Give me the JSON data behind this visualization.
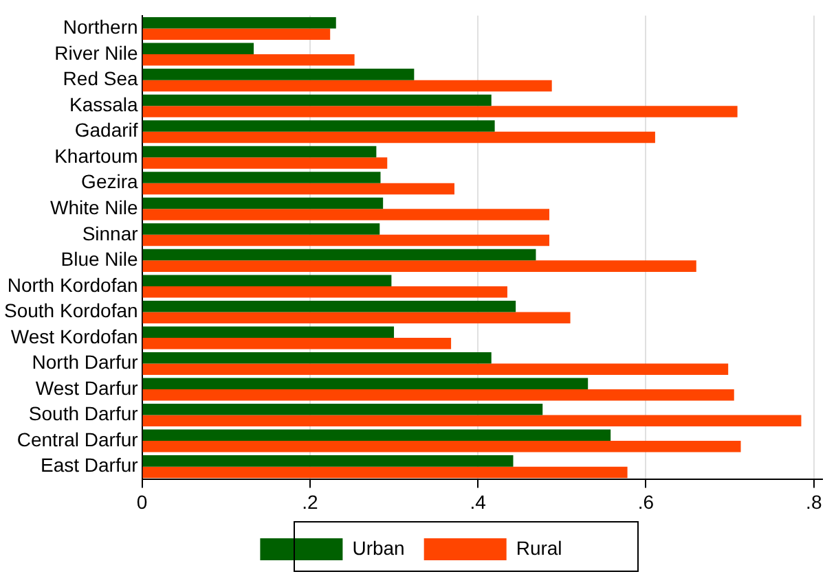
{
  "chart_data": {
    "type": "bar",
    "orientation": "horizontal",
    "categories": [
      "Northern",
      "River Nile",
      "Red Sea",
      "Kassala",
      "Gadarif",
      "Khartoum",
      "Gezira",
      "White Nile",
      "Sinnar",
      "Blue Nile",
      "North Kordofan",
      "South Kordofan",
      "West Kordofan",
      "North Darfur",
      "West Darfur",
      "South Darfur",
      "Central Darfur",
      "East Darfur"
    ],
    "series": [
      {
        "name": "Urban",
        "color": "#006000",
        "values": [
          0.231,
          0.133,
          0.324,
          0.416,
          0.42,
          0.279,
          0.284,
          0.287,
          0.283,
          0.469,
          0.297,
          0.445,
          0.3,
          0.416,
          0.531,
          0.477,
          0.558,
          0.442
        ]
      },
      {
        "name": "Rural",
        "color": "#ff4500",
        "values": [
          0.224,
          0.253,
          0.488,
          0.709,
          0.611,
          0.292,
          0.372,
          0.485,
          0.485,
          0.66,
          0.435,
          0.51,
          0.368,
          0.698,
          0.705,
          0.785,
          0.713,
          0.578
        ]
      }
    ],
    "xlim": [
      0,
      0.81
    ],
    "xticks": [
      0,
      {
        "value": 0.2,
        "label": ".2"
      },
      {
        "value": 0.4,
        "label": ".4"
      },
      {
        "value": 0.6,
        "label": ".6"
      },
      {
        "value": 0.8,
        "label": ".8"
      }
    ],
    "grid": "x",
    "legend": "bottom"
  }
}
